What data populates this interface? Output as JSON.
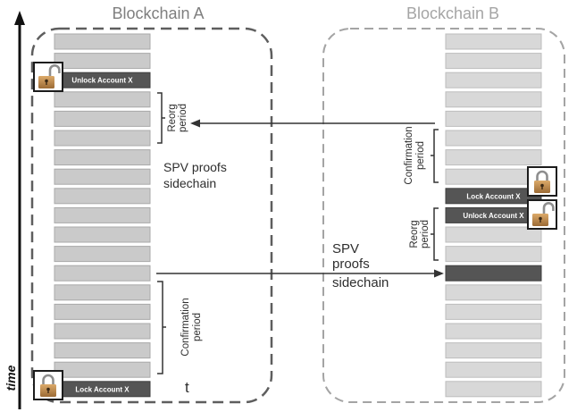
{
  "time_axis": {
    "label": "time"
  },
  "blockchain_a": {
    "title": "Blockchain A",
    "blocks": [
      {
        "label": ""
      },
      {
        "label": ""
      },
      {
        "label": "Unlock Account X",
        "dark": true
      },
      {
        "label": ""
      },
      {
        "label": ""
      },
      {
        "label": ""
      },
      {
        "label": ""
      },
      {
        "label": ""
      },
      {
        "label": ""
      },
      {
        "label": ""
      },
      {
        "label": ""
      },
      {
        "label": ""
      },
      {
        "label": ""
      },
      {
        "label": ""
      },
      {
        "label": ""
      },
      {
        "label": ""
      },
      {
        "label": ""
      },
      {
        "label": ""
      },
      {
        "label": "Lock Account X",
        "dark": true
      }
    ],
    "reorg_period": {
      "lines": [
        "Reorg",
        "period"
      ]
    },
    "confirmation_period": {
      "lines": [
        "Confirmation",
        "period"
      ]
    },
    "t_label": "t",
    "unlock_icon": "unlocked-padlock-icon",
    "lock_icon": "locked-padlock-icon"
  },
  "blockchain_b": {
    "title": "Blockchain B",
    "blocks": [
      {
        "label": ""
      },
      {
        "label": ""
      },
      {
        "label": ""
      },
      {
        "label": ""
      },
      {
        "label": ""
      },
      {
        "label": ""
      },
      {
        "label": ""
      },
      {
        "label": ""
      },
      {
        "label": "Lock Account X",
        "dark": true
      },
      {
        "label": "Unlock Account X",
        "dark": true
      },
      {
        "label": ""
      },
      {
        "label": ""
      },
      {
        "label": "",
        "dark": true
      },
      {
        "label": ""
      },
      {
        "label": ""
      },
      {
        "label": ""
      },
      {
        "label": ""
      },
      {
        "label": ""
      },
      {
        "label": ""
      }
    ],
    "confirmation_period": {
      "lines": [
        "Confirmation",
        "period"
      ]
    },
    "reorg_period": {
      "lines": [
        "Reorg",
        "period"
      ]
    },
    "lock_icon": "locked-padlock-icon",
    "unlock_icon": "unlocked-padlock-icon"
  },
  "arrows": {
    "b_to_a": {
      "label_lines": [
        "SPV proofs",
        "sidechain"
      ]
    },
    "a_to_b": {
      "label_lines": [
        "SPV",
        "proofs",
        "sidechain"
      ]
    }
  },
  "colors": {
    "chain_a_border": "#5e5e5e",
    "chain_b_border": "#a4a4a4",
    "chain_a_block": "#cacaca",
    "chain_b_block": "#d8d8d8",
    "dark_block": "#555555",
    "arrow": "#333333"
  }
}
